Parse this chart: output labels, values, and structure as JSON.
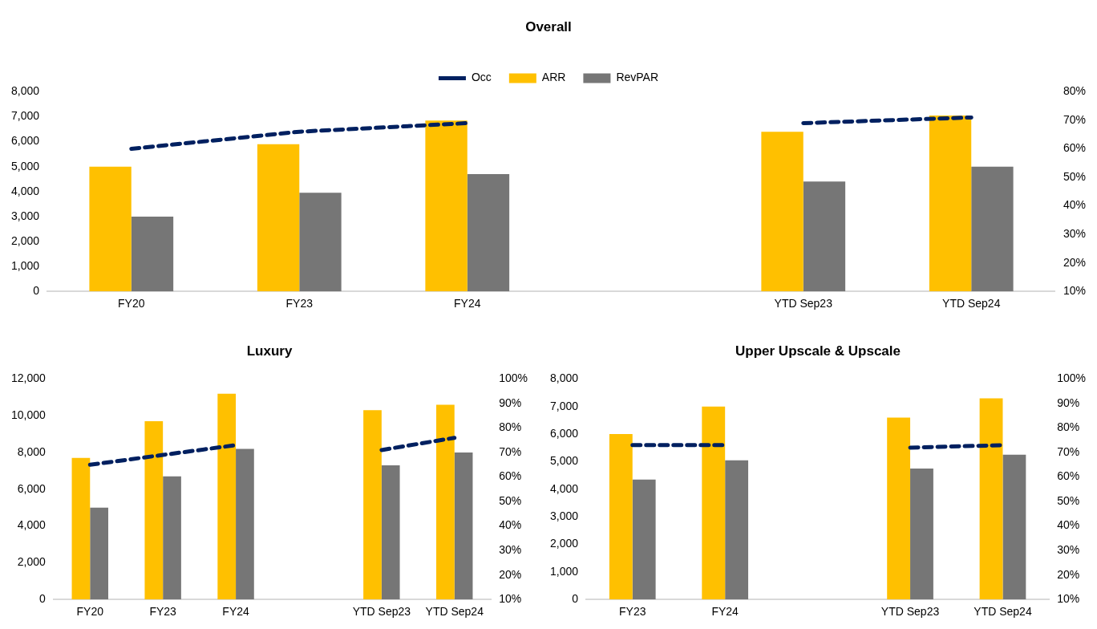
{
  "chart_data": [
    {
      "type": "bar",
      "title": "Overall",
      "categories": [
        "FY20",
        "FY23",
        "FY24",
        null,
        "YTD Sep23",
        "YTD Sep24"
      ],
      "series": [
        {
          "name": "ARR",
          "color": "#ffc000",
          "values": [
            5000,
            5900,
            6850,
            null,
            6400,
            7050
          ]
        },
        {
          "name": "RevPAR",
          "color": "#767676",
          "values": [
            3000,
            3950,
            4700,
            null,
            4400,
            5000
          ]
        },
        {
          "name": "Occ",
          "type": "line",
          "axis": "y2",
          "color": "#002060",
          "line_style": "dashed",
          "marker": "none",
          "values": [
            60,
            66,
            69,
            null,
            69,
            71
          ]
        }
      ],
      "ylim": [
        0,
        8000
      ],
      "yticks": [
        {
          "value": 0,
          "label": "0"
        },
        {
          "value": 1000,
          "label": "1,000"
        },
        {
          "value": 2000,
          "label": "2,000"
        },
        {
          "value": 3000,
          "label": "3,000"
        },
        {
          "value": 4000,
          "label": "4,000"
        },
        {
          "value": 5000,
          "label": "5,000"
        },
        {
          "value": 6000,
          "label": "6,000"
        },
        {
          "value": 7000,
          "label": "7,000"
        },
        {
          "value": 8000,
          "label": "8,000"
        }
      ],
      "y2lim": [
        10,
        80
      ],
      "y2ticks": [
        {
          "value": 10,
          "label": "10%"
        },
        {
          "value": 20,
          "label": "20%"
        },
        {
          "value": 30,
          "label": "30%"
        },
        {
          "value": 40,
          "label": "40%"
        },
        {
          "value": 50,
          "label": "50%"
        },
        {
          "value": 60,
          "label": "60%"
        },
        {
          "value": 70,
          "label": "70%"
        },
        {
          "value": 80,
          "label": "80%"
        }
      ],
      "grid": false,
      "legend": "top"
    },
    {
      "type": "bar",
      "title": "Luxury",
      "categories": [
        "FY20",
        "FY23",
        "FY24",
        null,
        "YTD Sep23",
        "YTD Sep24"
      ],
      "series": [
        {
          "color": "#ffc000",
          "values": [
            7700,
            9700,
            11200,
            null,
            10300,
            10600
          ]
        },
        {
          "color": "#767676",
          "values": [
            5000,
            6700,
            8200,
            null,
            7300,
            8000
          ]
        },
        {
          "type": "line",
          "axis": "y2",
          "color": "#002060",
          "line_style": "dashed",
          "marker": "none",
          "values": [
            65,
            69,
            73,
            null,
            71,
            76
          ]
        }
      ],
      "ylim": [
        0,
        12000
      ],
      "yticks": [
        {
          "value": 0,
          "label": "0"
        },
        {
          "value": 2000,
          "label": "2,000"
        },
        {
          "value": 4000,
          "label": "4,000"
        },
        {
          "value": 6000,
          "label": "6,000"
        },
        {
          "value": 8000,
          "label": "8,000"
        },
        {
          "value": 10000,
          "label": "10,000"
        },
        {
          "value": 12000,
          "label": "12,000"
        }
      ],
      "y2lim": [
        10,
        100
      ],
      "y2ticks": [
        {
          "value": 10,
          "label": "10%"
        },
        {
          "value": 20,
          "label": "20%"
        },
        {
          "value": 30,
          "label": "30%"
        },
        {
          "value": 40,
          "label": "40%"
        },
        {
          "value": 50,
          "label": "50%"
        },
        {
          "value": 60,
          "label": "60%"
        },
        {
          "value": 70,
          "label": "70%"
        },
        {
          "value": 80,
          "label": "80%"
        },
        {
          "value": 90,
          "label": "90%"
        },
        {
          "value": 100,
          "label": "100%"
        }
      ],
      "grid": false,
      "legend": false
    },
    {
      "type": "bar",
      "title": "Upper Upscale & Upscale",
      "categories": [
        "FY23",
        "FY24",
        null,
        "YTD Sep23",
        "YTD Sep24"
      ],
      "series": [
        {
          "color": "#ffc000",
          "values": [
            6000,
            7000,
            null,
            6600,
            7300
          ]
        },
        {
          "color": "#767676",
          "values": [
            4350,
            5050,
            null,
            4750,
            5250
          ]
        },
        {
          "type": "line",
          "axis": "y2",
          "color": "#002060",
          "line_style": "dashed",
          "marker": "none",
          "values": [
            73,
            73,
            null,
            72,
            73
          ]
        }
      ],
      "ylim": [
        0,
        8000
      ],
      "yticks": [
        {
          "value": 0,
          "label": "0"
        },
        {
          "value": 1000,
          "label": "1,000"
        },
        {
          "value": 2000,
          "label": "2,000"
        },
        {
          "value": 3000,
          "label": "3,000"
        },
        {
          "value": 4000,
          "label": "4,000"
        },
        {
          "value": 5000,
          "label": "5,000"
        },
        {
          "value": 6000,
          "label": "6,000"
        },
        {
          "value": 7000,
          "label": "7,000"
        },
        {
          "value": 8000,
          "label": "8,000"
        }
      ],
      "y2lim": [
        10,
        100
      ],
      "y2ticks": [
        {
          "value": 10,
          "label": "10%"
        },
        {
          "value": 20,
          "label": "20%"
        },
        {
          "value": 30,
          "label": "30%"
        },
        {
          "value": 40,
          "label": "40%"
        },
        {
          "value": 50,
          "label": "50%"
        },
        {
          "value": 60,
          "label": "60%"
        },
        {
          "value": 70,
          "label": "70%"
        },
        {
          "value": 80,
          "label": "80%"
        },
        {
          "value": 90,
          "label": "90%"
        },
        {
          "value": 100,
          "label": "100%"
        }
      ],
      "grid": false,
      "legend": false
    }
  ]
}
